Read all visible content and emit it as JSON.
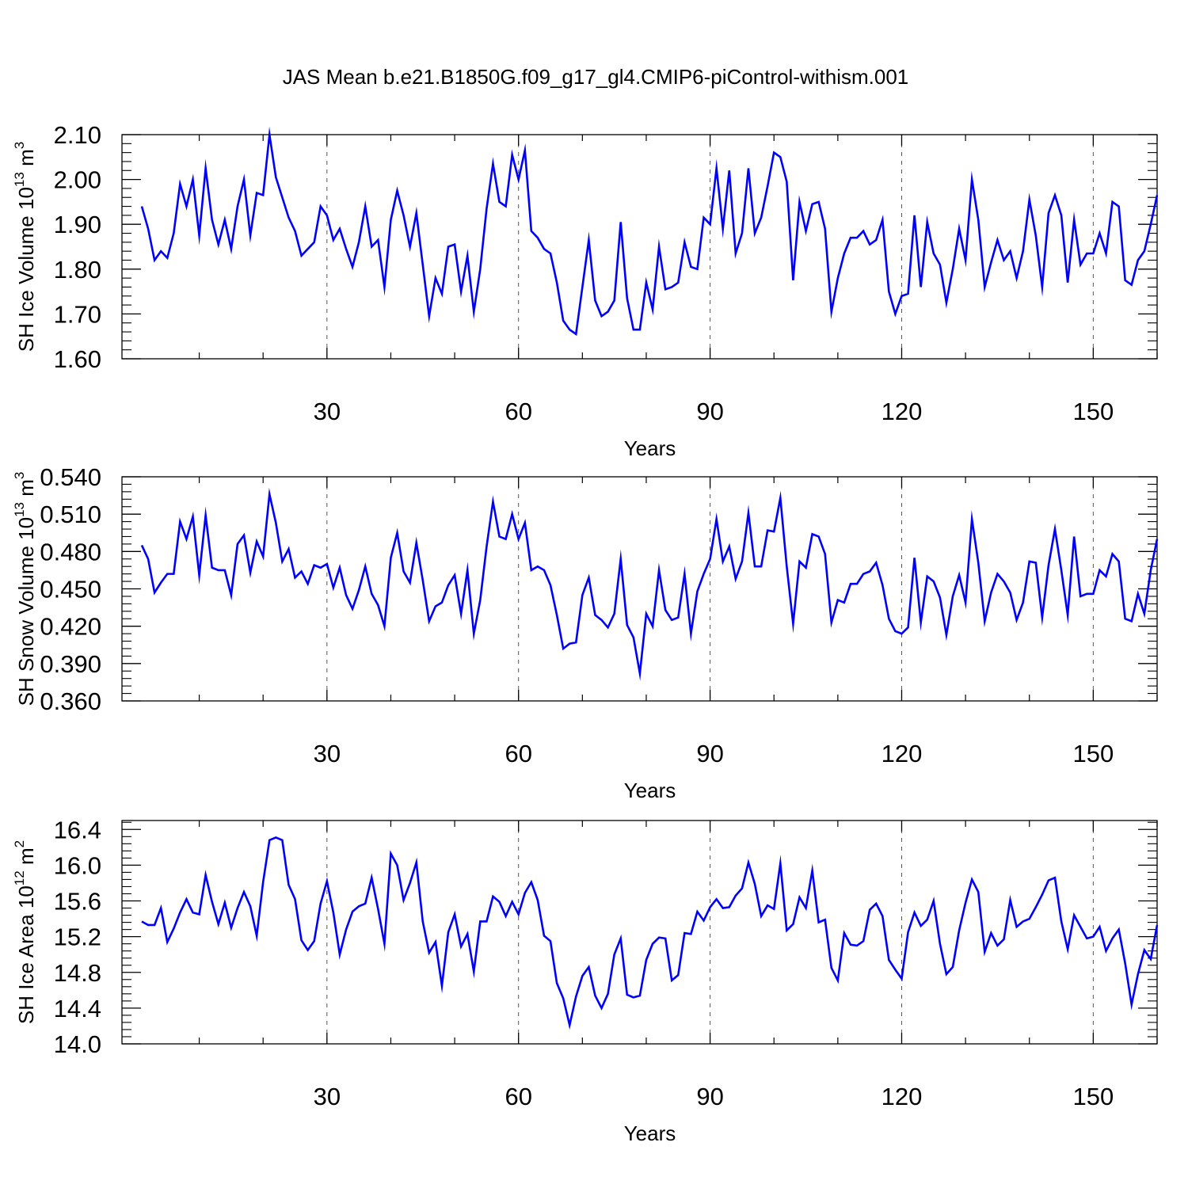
{
  "title": "JAS Mean b.e21.B1850G.f09_g17_gl4.CMIP6-piControl-withism.001",
  "colors": {
    "series": "#0000ff",
    "axes": "#000000",
    "grid": "#555555",
    "background": "#ffffff"
  },
  "chart_data": [
    {
      "type": "line",
      "name": "SH Ice Volume",
      "ylabel_main": "SH Ice Volume 10",
      "ylabel_exp": "13",
      "ylabel_unit": " m",
      "ylabel_unit_exp": "3",
      "xlabel": "Years",
      "xlim": [
        1,
        160
      ],
      "ylim": [
        1.6,
        2.1
      ],
      "xticks": [
        30,
        60,
        90,
        120,
        150
      ],
      "xtick_labels": [
        "30",
        "60",
        "90",
        "120",
        "150"
      ],
      "yticks": [
        1.6,
        1.7,
        1.8,
        1.9,
        2.0,
        2.1
      ],
      "ytick_labels": [
        "1.60",
        "1.70",
        "1.80",
        "1.90",
        "2.00",
        "2.10"
      ],
      "grid": "vertical dashed at x ticks",
      "x_start": 1,
      "values": [
        1.94,
        1.89,
        1.82,
        1.84,
        1.825,
        1.88,
        1.99,
        1.94,
        2.0,
        1.875,
        2.025,
        1.91,
        1.855,
        1.91,
        1.845,
        1.94,
        2.0,
        1.875,
        1.97,
        1.965,
        2.1,
        2.005,
        1.96,
        1.915,
        1.885,
        1.83,
        1.845,
        1.86,
        1.94,
        1.92,
        1.865,
        1.89,
        1.845,
        1.805,
        1.86,
        1.94,
        1.85,
        1.865,
        1.76,
        1.91,
        1.975,
        1.92,
        1.85,
        1.925,
        1.81,
        1.695,
        1.78,
        1.745,
        1.85,
        1.855,
        1.75,
        1.83,
        1.705,
        1.8,
        1.935,
        2.035,
        1.95,
        1.94,
        2.055,
        2.0,
        2.065,
        1.885,
        1.87,
        1.845,
        1.835,
        1.77,
        1.685,
        1.665,
        1.655,
        1.76,
        1.865,
        1.73,
        1.695,
        1.705,
        1.73,
        1.905,
        1.735,
        1.665,
        1.665,
        1.77,
        1.71,
        1.85,
        1.755,
        1.76,
        1.77,
        1.86,
        1.805,
        1.8,
        1.915,
        1.9,
        2.025,
        1.89,
        2.02,
        1.835,
        1.88,
        2.025,
        1.88,
        1.915,
        1.985,
        2.06,
        2.05,
        1.995,
        1.775,
        1.95,
        1.885,
        1.945,
        1.95,
        1.89,
        1.705,
        1.78,
        1.835,
        1.87,
        1.87,
        1.885,
        1.855,
        1.865,
        1.91,
        1.75,
        1.7,
        1.74,
        1.745,
        1.92,
        1.76,
        1.905,
        1.835,
        1.81,
        1.725,
        1.8,
        1.89,
        1.82,
        2.0,
        1.91,
        1.76,
        1.815,
        1.865,
        1.82,
        1.84,
        1.78,
        1.84,
        1.955,
        1.875,
        1.76,
        1.925,
        1.965,
        1.92,
        1.77,
        1.91,
        1.81,
        1.835,
        1.835,
        1.88,
        1.835,
        1.95,
        1.94,
        1.775,
        1.765,
        1.82,
        1.84,
        1.9,
        1.965
      ]
    },
    {
      "type": "line",
      "name": "SH Snow Volume",
      "ylabel_main": "SH Snow Volume 10",
      "ylabel_exp": "13",
      "ylabel_unit": " m",
      "ylabel_unit_exp": "3",
      "xlabel": "Years",
      "xlim": [
        1,
        160
      ],
      "ylim": [
        0.36,
        0.54
      ],
      "xticks": [
        30,
        60,
        90,
        120,
        150
      ],
      "xtick_labels": [
        "30",
        "60",
        "90",
        "120",
        "150"
      ],
      "yticks": [
        0.36,
        0.39,
        0.42,
        0.45,
        0.48,
        0.51,
        0.54
      ],
      "ytick_labels": [
        "0.360",
        "0.390",
        "0.420",
        "0.450",
        "0.480",
        "0.510",
        "0.540"
      ],
      "grid": "vertical dashed at x ticks",
      "x_start": 1,
      "values": [
        0.485,
        0.474,
        0.447,
        0.455,
        0.462,
        0.462,
        0.504,
        0.49,
        0.508,
        0.461,
        0.509,
        0.467,
        0.465,
        0.465,
        0.445,
        0.486,
        0.493,
        0.463,
        0.488,
        0.476,
        0.526,
        0.503,
        0.472,
        0.482,
        0.459,
        0.464,
        0.454,
        0.469,
        0.467,
        0.47,
        0.451,
        0.467,
        0.445,
        0.434,
        0.449,
        0.468,
        0.446,
        0.437,
        0.42,
        0.475,
        0.495,
        0.464,
        0.455,
        0.487,
        0.457,
        0.424,
        0.436,
        0.439,
        0.453,
        0.461,
        0.43,
        0.465,
        0.414,
        0.441,
        0.484,
        0.52,
        0.492,
        0.49,
        0.51,
        0.49,
        0.503,
        0.465,
        0.468,
        0.465,
        0.453,
        0.429,
        0.402,
        0.406,
        0.407,
        0.445,
        0.459,
        0.429,
        0.425,
        0.419,
        0.43,
        0.474,
        0.421,
        0.411,
        0.382,
        0.43,
        0.42,
        0.465,
        0.433,
        0.425,
        0.427,
        0.462,
        0.414,
        0.448,
        0.462,
        0.474,
        0.506,
        0.472,
        0.484,
        0.458,
        0.472,
        0.511,
        0.468,
        0.468,
        0.497,
        0.496,
        0.523,
        0.468,
        0.422,
        0.472,
        0.467,
        0.494,
        0.492,
        0.478,
        0.423,
        0.441,
        0.439,
        0.454,
        0.454,
        0.462,
        0.464,
        0.471,
        0.453,
        0.426,
        0.416,
        0.414,
        0.419,
        0.475,
        0.423,
        0.46,
        0.456,
        0.443,
        0.413,
        0.444,
        0.461,
        0.439,
        0.506,
        0.471,
        0.424,
        0.447,
        0.462,
        0.456,
        0.447,
        0.425,
        0.439,
        0.472,
        0.471,
        0.427,
        0.469,
        0.498,
        0.465,
        0.429,
        0.492,
        0.444,
        0.446,
        0.446,
        0.465,
        0.46,
        0.478,
        0.472,
        0.426,
        0.424,
        0.446,
        0.43,
        0.465,
        0.49
      ]
    },
    {
      "type": "line",
      "name": "SH Ice Area",
      "ylabel_main": "SH Ice Area 10",
      "ylabel_exp": "12",
      "ylabel_unit": " m",
      "ylabel_unit_exp": "2",
      "xlabel": "Years",
      "xlim": [
        1,
        160
      ],
      "ylim": [
        14.0,
        16.5
      ],
      "xticks": [
        30,
        60,
        90,
        120,
        150
      ],
      "xtick_labels": [
        "30",
        "60",
        "90",
        "120",
        "150"
      ],
      "yticks": [
        14.0,
        14.4,
        14.8,
        15.2,
        15.6,
        16.0,
        16.4
      ],
      "ytick_labels": [
        "14.0",
        "14.4",
        "14.8",
        "15.2",
        "15.6",
        "16.0",
        "16.4"
      ],
      "grid": "vertical dashed at x ticks",
      "x_start": 1,
      "values": [
        15.37,
        15.33,
        15.33,
        15.52,
        15.14,
        15.29,
        15.47,
        15.62,
        15.47,
        15.45,
        15.89,
        15.59,
        15.34,
        15.58,
        15.3,
        15.52,
        15.7,
        15.54,
        15.21,
        15.81,
        16.28,
        16.31,
        16.28,
        15.78,
        15.62,
        15.16,
        15.05,
        15.15,
        15.57,
        15.82,
        15.47,
        15.0,
        15.28,
        15.48,
        15.54,
        15.57,
        15.86,
        15.51,
        15.12,
        16.13,
        16.0,
        15.61,
        15.8,
        16.03,
        15.37,
        15.02,
        15.14,
        14.65,
        15.25,
        15.45,
        15.09,
        15.23,
        14.81,
        15.37,
        15.37,
        15.65,
        15.59,
        15.43,
        15.59,
        15.45,
        15.69,
        15.81,
        15.61,
        15.21,
        15.15,
        14.68,
        14.51,
        14.21,
        14.53,
        14.76,
        14.86,
        14.54,
        14.4,
        14.56,
        15.0,
        15.18,
        14.55,
        14.52,
        14.54,
        14.94,
        15.12,
        15.19,
        15.18,
        14.71,
        14.77,
        15.24,
        15.23,
        15.48,
        15.38,
        15.53,
        15.62,
        15.52,
        15.53,
        15.66,
        15.74,
        16.03,
        15.79,
        15.43,
        15.55,
        15.51,
        16.02,
        15.27,
        15.34,
        15.64,
        15.52,
        15.94,
        15.36,
        15.39,
        14.85,
        14.71,
        15.24,
        15.11,
        15.1,
        15.15,
        15.5,
        15.57,
        15.43,
        14.94,
        14.83,
        14.73,
        15.25,
        15.47,
        15.32,
        15.39,
        15.6,
        15.12,
        14.78,
        14.86,
        15.27,
        15.58,
        15.84,
        15.7,
        15.03,
        15.24,
        15.1,
        15.17,
        15.61,
        15.31,
        15.37,
        15.4,
        15.53,
        15.67,
        15.83,
        15.86,
        15.37,
        15.06,
        15.44,
        15.31,
        15.18,
        15.2,
        15.31,
        15.04,
        15.18,
        15.28,
        14.9,
        14.44,
        14.78,
        15.05,
        14.95,
        15.33
      ]
    }
  ]
}
